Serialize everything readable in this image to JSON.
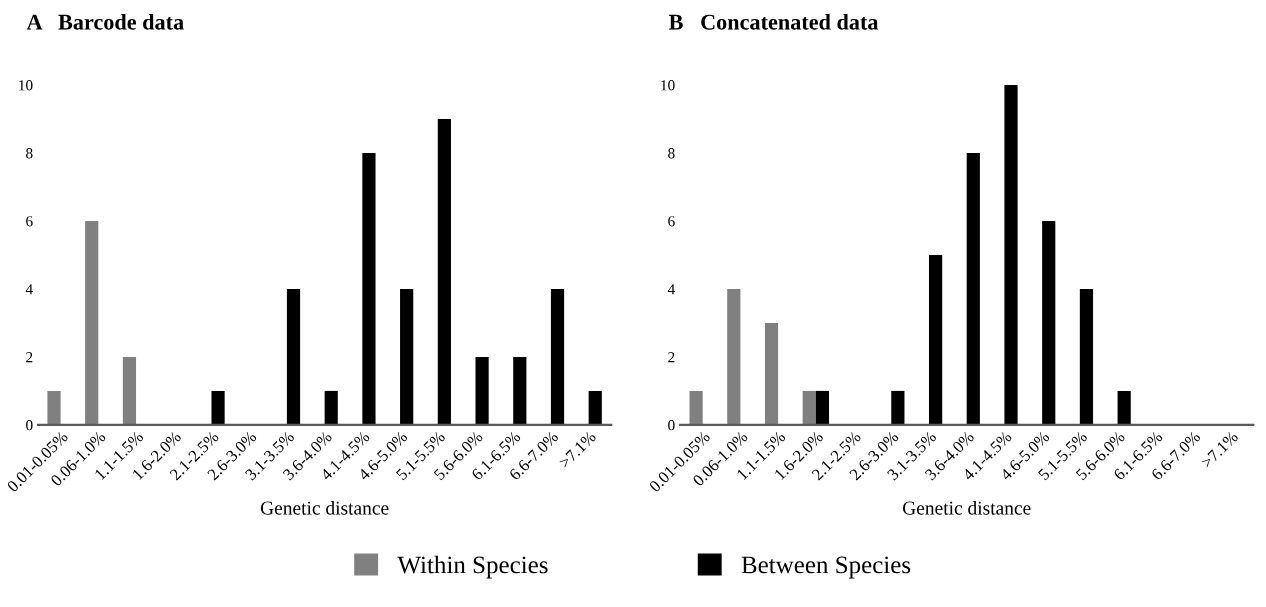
{
  "chart_data": [
    {
      "type": "bar",
      "title": "A   Barcode data",
      "xlabel": "Genetic distance",
      "categories": [
        "0.01-0.05%",
        "0.06-1.0%",
        "1.1-1.5%",
        "1.6-2.0%",
        "2.1-2.5%",
        "2.6-3.0%",
        "3.1-3.5%",
        "3.6-4.0%",
        "4.1-4.5%",
        "4.6-5.0%",
        "5.1-5.5%",
        "5.6-6.0%",
        "6.1-6.5%",
        "6.6-7.0%",
        ">7.1%"
      ],
      "series": [
        {
          "name": "Within Species",
          "color": "#808080",
          "values": [
            1,
            6,
            2,
            0,
            0,
            0,
            0,
            0,
            0,
            0,
            0,
            0,
            0,
            0,
            0
          ]
        },
        {
          "name": "Between Species",
          "color": "#000000",
          "values": [
            0,
            0,
            0,
            0,
            1,
            0,
            4,
            1,
            8,
            4,
            9,
            2,
            2,
            4,
            1
          ]
        }
      ],
      "ylim": [
        0,
        10
      ],
      "yticks": [
        0,
        2,
        4,
        6,
        8,
        10
      ],
      "grid": false,
      "legend": "bottom"
    },
    {
      "type": "bar",
      "title": "B   Concatenated data",
      "xlabel": "Genetic distance",
      "categories": [
        "0.01-0.05%",
        "0.06-1.0%",
        "1.1-1.5%",
        "1.6-2.0%",
        "2.1-2.5%",
        "2.6-3.0%",
        "3.1-3.5%",
        "3.6-4.0%",
        "4.1-4.5%",
        "4.6-5.0%",
        "5.1-5.5%",
        "5.6-6.0%",
        "6.1-6.5%",
        "6.6-7.0%",
        ">7.1%"
      ],
      "series": [
        {
          "color": "#808080",
          "values": [
            1,
            4,
            3,
            1,
            0,
            0,
            0,
            0,
            0,
            0,
            0,
            0,
            0,
            0,
            0
          ]
        },
        {
          "color": "#000000",
          "values": [
            0,
            0,
            0,
            1,
            0,
            1,
            5,
            8,
            10,
            6,
            4,
            1,
            0,
            0,
            0
          ]
        }
      ],
      "ylim": [
        0,
        10
      ],
      "yticks": [
        0,
        2,
        4,
        6,
        8,
        10
      ],
      "grid": false
    }
  ]
}
